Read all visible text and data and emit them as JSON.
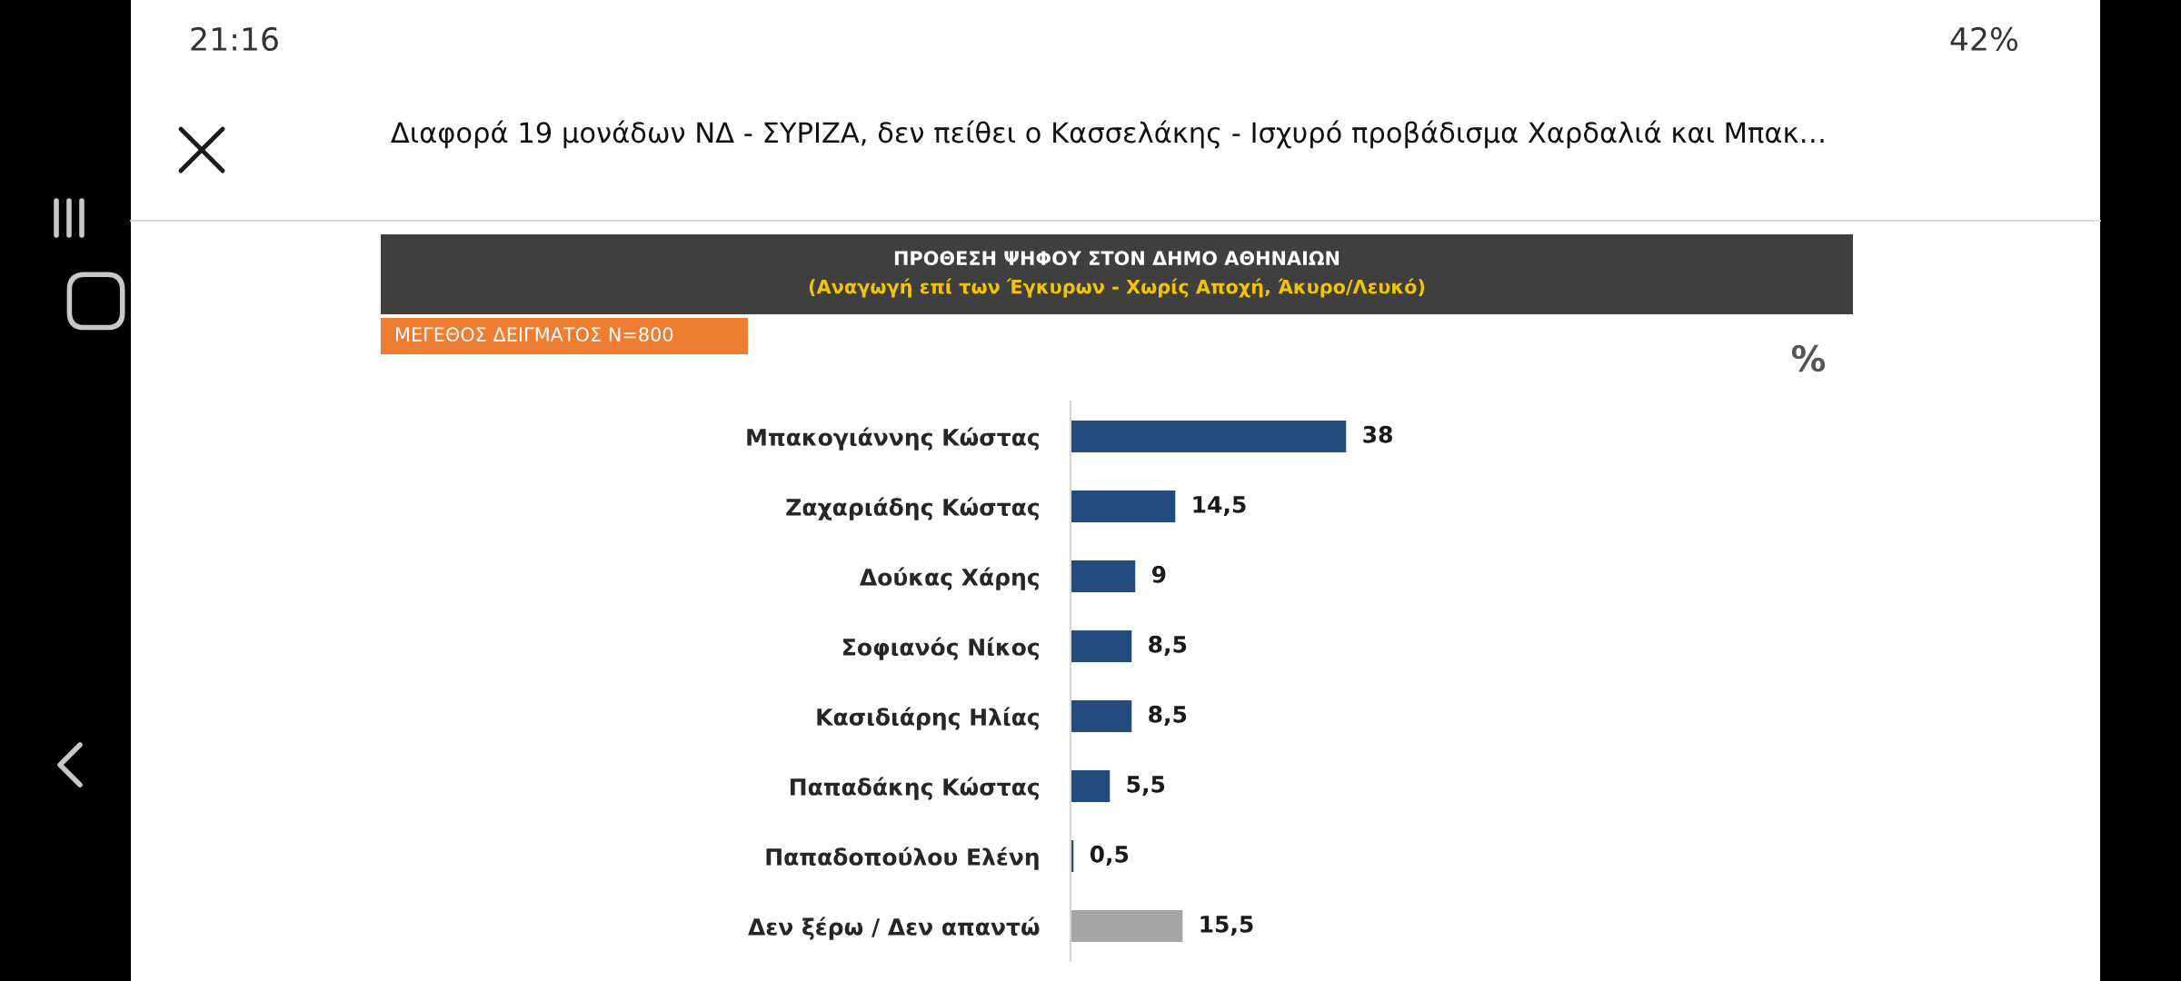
{
  "chart_data": {
    "type": "bar",
    "orientation": "horizontal",
    "title": "ΠΡΟΘΕΣΗ ΨΗΦΟΥ ΣΤΟΝ ΔΗΜΟ ΑΘΗΝΑΙΩΝ",
    "subtitle": "(Αναγωγή επί των Έγκυρων - Χωρίς Αποχή, Άκυρο/Λευκό)",
    "categories": [
      "Μπακογιάννης Κώστας",
      "Ζαχαριάδης Κώστας",
      "Δούκας Χάρης",
      "Σοφιανός Νίκος",
      "Κασιδιάρης Ηλίας",
      "Παπαδάκης Κώστας",
      "Παπαδοπούλου Ελένη",
      "Δεν ξέρω / Δεν απαντώ"
    ],
    "values": [
      38,
      14.5,
      9,
      8.5,
      8.5,
      5.5,
      0.5,
      15.5
    ],
    "colors": [
      "#234c7c",
      "#234c7c",
      "#234c7c",
      "#234c7c",
      "#234c7c",
      "#234c7c",
      "#234c7c",
      "#a6a6a6"
    ],
    "value_labels": [
      "38",
      "14,5",
      "9",
      "8,5",
      "8,5",
      "5,5",
      "0,5",
      "15,5"
    ],
    "tick_labels": "y",
    "annotations": [
      "21:16",
      "42%",
      "Διαφορά 19 μονάδων ΝΔ - ΣΥΡΙΖΑ, δεν πείθει ο Κασσελάκης - Ισχυρό προβάδισμα Χαρδαλιά και Μπακ…",
      "ΜΕΓΕΘΟΣ ΔΕΙΓΜΑΤΟΣ N=800",
      "%"
    ]
  }
}
